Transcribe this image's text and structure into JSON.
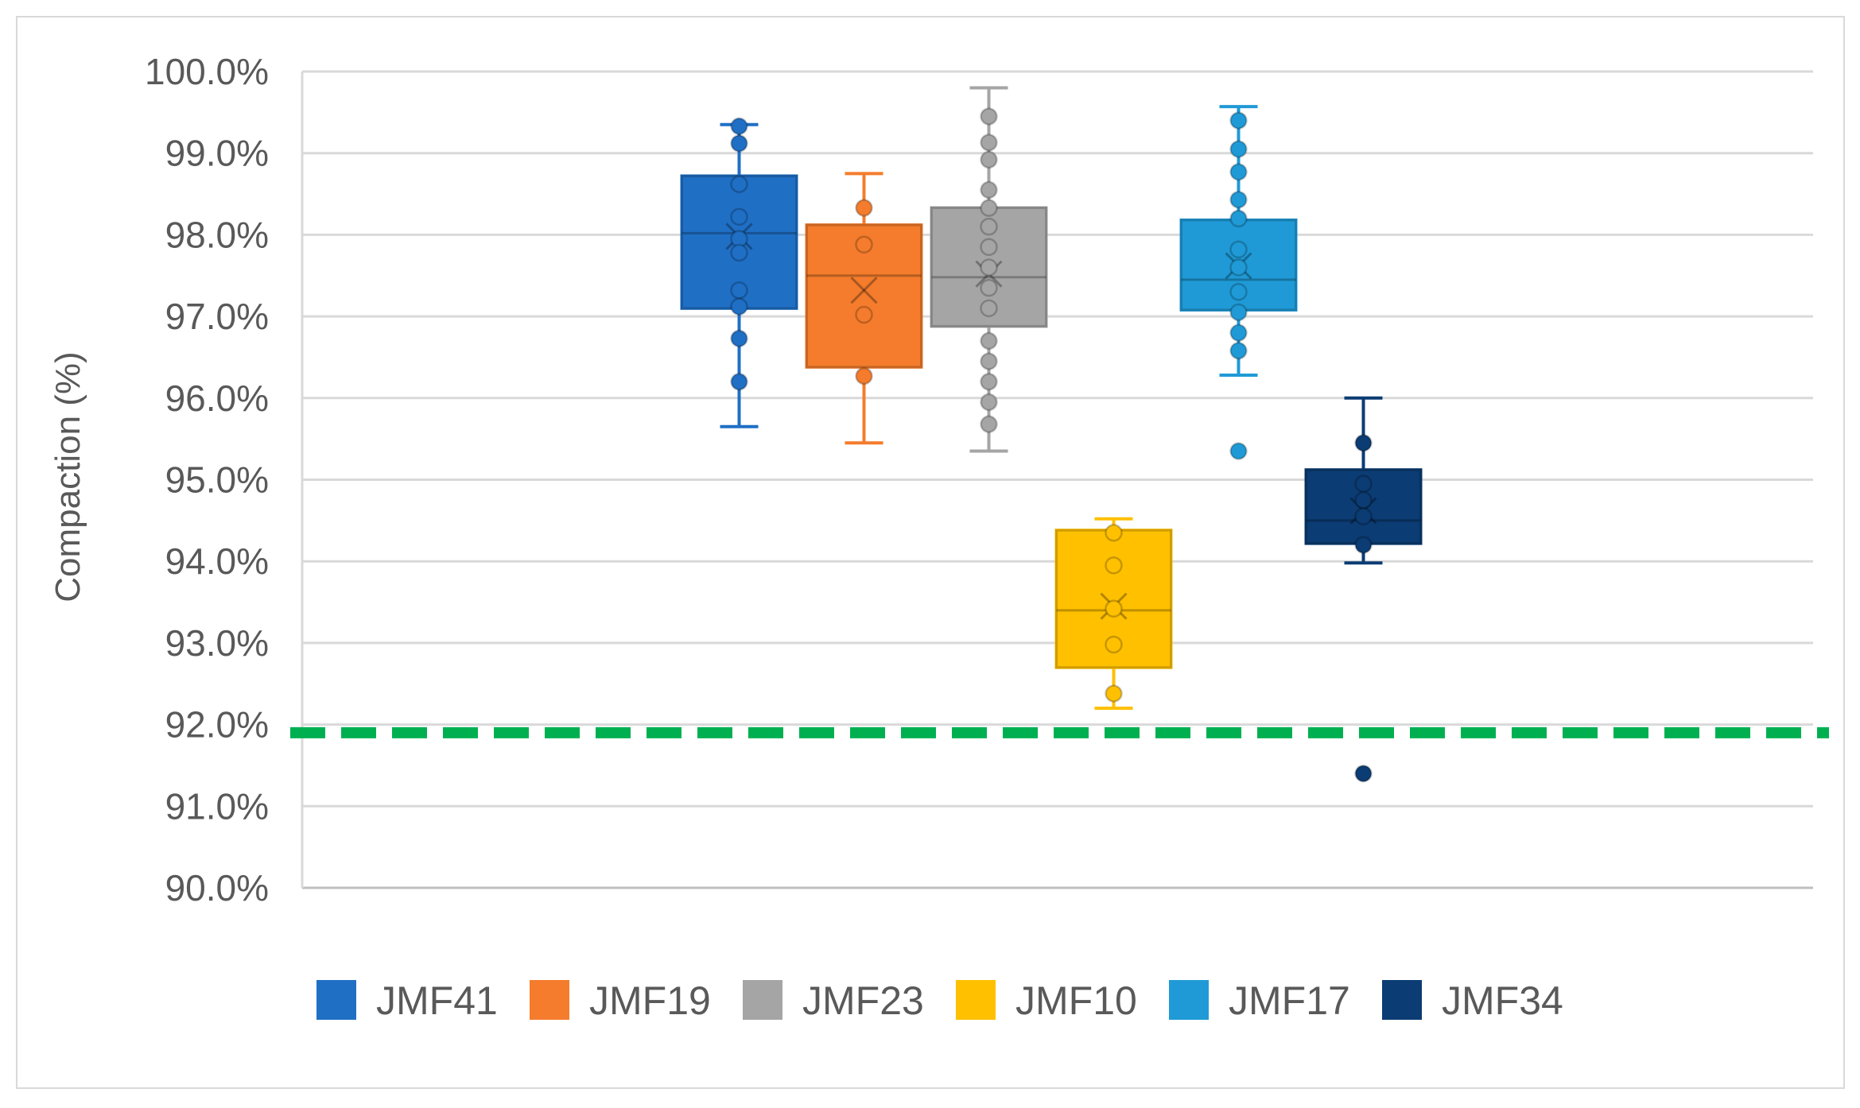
{
  "chart_data": {
    "type": "box",
    "title": "",
    "xlabel": "",
    "ylabel": "Compaction (%)",
    "ylim": [
      90.0,
      100.0
    ],
    "y_ticks": [
      "90.0%",
      "91.0%",
      "92.0%",
      "93.0%",
      "94.0%",
      "95.0%",
      "96.0%",
      "97.0%",
      "98.0%",
      "99.0%",
      "100.0%"
    ],
    "grid": true,
    "legend_position": "bottom",
    "reference_line": {
      "value": 91.9,
      "color": "#00b050",
      "style": "dashed"
    },
    "series": [
      {
        "name": "JMF41",
        "color": "#1f6fc5",
        "slot": 4,
        "min": 95.65,
        "q1": 97.1,
        "median": 98.02,
        "q3": 98.72,
        "max": 99.35,
        "mean": 97.98,
        "points": [
          99.33,
          99.12,
          98.62,
          98.22,
          97.95,
          97.78,
          97.32,
          97.12,
          96.73,
          96.2
        ],
        "outliers": []
      },
      {
        "name": "JMF19",
        "color": "#f47c2c",
        "slot": 5,
        "min": 95.45,
        "q1": 96.38,
        "median": 97.5,
        "q3": 98.12,
        "max": 98.75,
        "mean": 97.32,
        "points": [
          98.33,
          97.88,
          97.02,
          96.27
        ],
        "outliers": []
      },
      {
        "name": "JMF23",
        "color": "#a5a5a5",
        "slot": 6,
        "min": 95.35,
        "q1": 96.88,
        "median": 97.48,
        "q3": 98.33,
        "max": 99.8,
        "mean": 97.52,
        "points": [
          99.45,
          99.13,
          98.92,
          98.55,
          98.33,
          98.1,
          97.85,
          97.6,
          97.35,
          97.1,
          96.7,
          96.45,
          96.2,
          95.95,
          95.68
        ],
        "outliers": []
      },
      {
        "name": "JMF10",
        "color": "#ffc000",
        "slot": 7,
        "min": 92.2,
        "q1": 92.7,
        "median": 93.4,
        "q3": 94.38,
        "max": 94.52,
        "mean": 93.45,
        "points": [
          94.35,
          93.95,
          93.42,
          92.98,
          92.38
        ],
        "outliers": []
      },
      {
        "name": "JMF17",
        "color": "#1f9ad6",
        "slot": 8,
        "min": 96.28,
        "q1": 97.08,
        "median": 97.45,
        "q3": 98.18,
        "max": 99.57,
        "mean": 97.62,
        "points": [
          99.4,
          99.05,
          98.77,
          98.43,
          98.2,
          97.82,
          97.6,
          97.3,
          97.05,
          96.8,
          96.58
        ],
        "outliers": [
          95.35
        ]
      },
      {
        "name": "JMF34",
        "color": "#0b3c73",
        "slot": 9,
        "min": 93.98,
        "q1": 94.22,
        "median": 94.5,
        "q3": 95.12,
        "max": 96.0,
        "mean": 94.62,
        "points": [
          95.45,
          94.95,
          94.75,
          94.55,
          94.2
        ],
        "outliers": [
          91.4
        ]
      }
    ]
  }
}
